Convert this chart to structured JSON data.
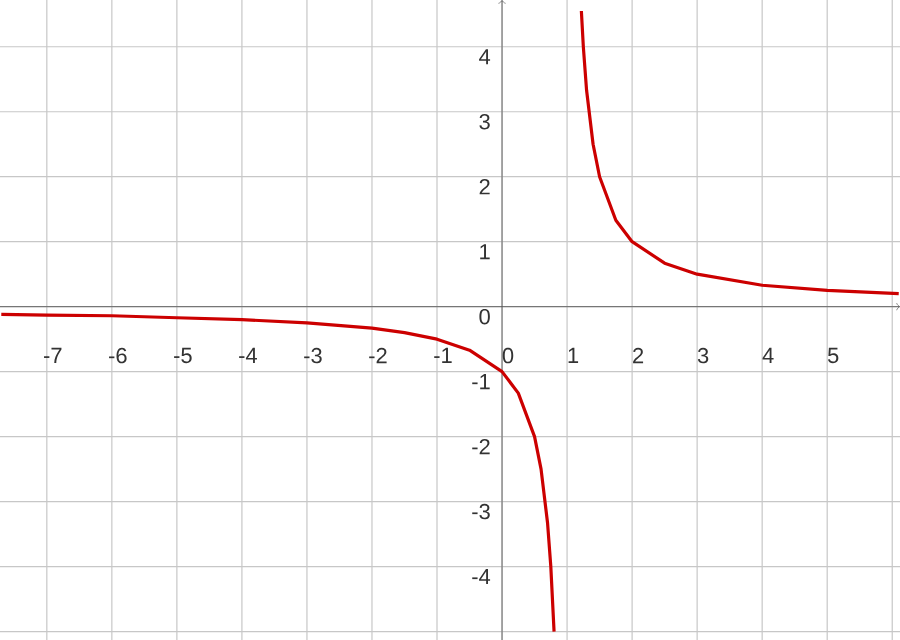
{
  "chart_data": {
    "type": "line",
    "xlim": [
      -7.72,
      6.12
    ],
    "ylim": [
      -5.13,
      4.72
    ],
    "xticks": [
      -7,
      -6,
      -5,
      -4,
      -3,
      -2,
      -1,
      0,
      1,
      2,
      3,
      4,
      5,
      {
        "value": 6,
        "label": null
      }
    ],
    "yticks": [
      {
        "value": -5,
        "label": null
      },
      -4,
      -3,
      -2,
      -1,
      0,
      1,
      2,
      3,
      4
    ],
    "grid": true,
    "marker": "none",
    "line_style": "solid",
    "series": [
      {
        "color": "#cc0000",
        "x": [
          -7.7,
          -7,
          -6,
          -5,
          -4,
          -3,
          -2,
          -1.5,
          -1,
          -0.5,
          0,
          0.25,
          0.5,
          0.6,
          0.7,
          0.75,
          0.8,
          1,
          1.22,
          1.25,
          1.3,
          1.4,
          1.5,
          1.75,
          2,
          2.5,
          3,
          4,
          5,
          6.1
        ],
        "values": [
          -0.12,
          -0.13,
          -0.14,
          -0.17,
          -0.2,
          -0.25,
          -0.33,
          -0.4,
          -0.5,
          -0.67,
          -1,
          -1.33,
          -2,
          -2.5,
          -3.33,
          -4,
          -5,
          null,
          4.55,
          4,
          3.33,
          2.5,
          2,
          1.33,
          1,
          0.67,
          0.5,
          0.33,
          0.25,
          0.2
        ]
      }
    ]
  }
}
